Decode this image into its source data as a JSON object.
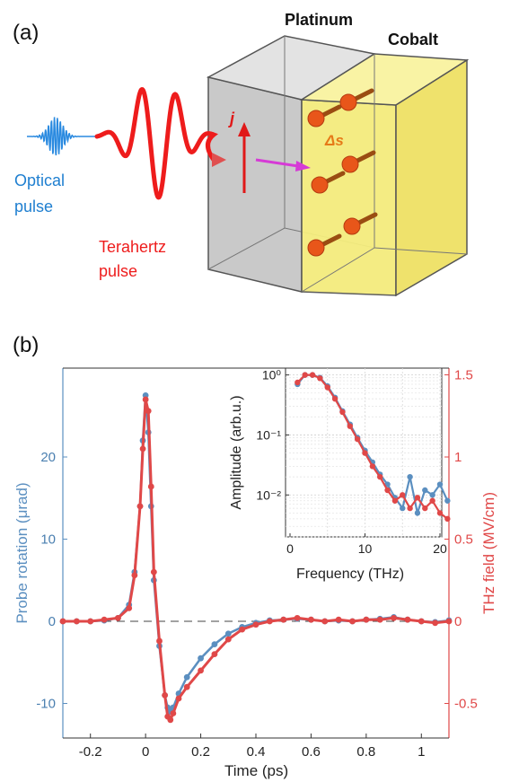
{
  "panel_a": {
    "label": "(a)",
    "platinum": "Platinum",
    "cobalt": "Cobalt",
    "optical_line1": "Optical",
    "optical_line2": "pulse",
    "thz_line1": "Terahertz",
    "thz_line2": "pulse",
    "current_symbol": "j",
    "spin_symbol": "Δs",
    "colors": {
      "optical": "#1f7fd0",
      "thz": "#ee1c1c",
      "cobalt": "#f6f07a",
      "platinum": "#c4c4c4",
      "arrow": "#d63ad6"
    }
  },
  "panel_b": {
    "label": "(b)",
    "colors": {
      "probe": "#5b8fc0",
      "thz": "#e04848"
    }
  },
  "chart_data": [
    {
      "type": "line",
      "xlabel": "Time (ps)",
      "ylabel_left": "Probe rotation (μrad)",
      "ylabel_right": "THz field (MV/cm)",
      "xlim": [
        -0.3,
        1.1
      ],
      "ylim_left": [
        -13,
        30
      ],
      "ylim_right": [
        -0.65,
        1.5
      ],
      "x_ticks": [
        "-0.2",
        "0",
        "0.2",
        "0.4",
        "0.6",
        "0.8",
        "1"
      ],
      "x_tick_values": [
        -0.2,
        0,
        0.2,
        0.4,
        0.6,
        0.8,
        1.0
      ],
      "left_ticks": [
        "-10",
        "0",
        "10",
        "20"
      ],
      "left_tick_values": [
        -10,
        0,
        10,
        20
      ],
      "right_ticks": [
        "-0.5",
        "0",
        "0.5",
        "1",
        "1.5"
      ],
      "right_tick_values": [
        -0.5,
        0,
        0.5,
        1.0,
        1.5
      ],
      "series": [
        {
          "axis": "left",
          "x": [
            -0.3,
            -0.25,
            -0.2,
            -0.15,
            -0.1,
            -0.06,
            -0.04,
            -0.02,
            -0.01,
            0,
            0.01,
            0.02,
            0.03,
            0.05,
            0.07,
            0.08,
            0.09,
            0.1,
            0.12,
            0.15,
            0.2,
            0.25,
            0.3,
            0.35,
            0.4,
            0.45,
            0.5,
            0.55,
            0.6,
            0.65,
            0.7,
            0.75,
            0.8,
            0.85,
            0.9,
            0.95,
            1.0,
            1.05,
            1.1
          ],
          "y": [
            0,
            0,
            0,
            0.1,
            0.4,
            2,
            6,
            14,
            22,
            27.5,
            23,
            14,
            5,
            -3,
            -9,
            -10.5,
            -11,
            -10.5,
            -8.8,
            -6.8,
            -4.5,
            -2.8,
            -1.5,
            -0.7,
            -0.2,
            0.1,
            0.2,
            0.3,
            0.2,
            0,
            0.1,
            0,
            0.2,
            0.3,
            0.5,
            0.2,
            0,
            -0.1,
            0.1
          ]
        },
        {
          "axis": "right",
          "x": [
            -0.3,
            -0.25,
            -0.2,
            -0.15,
            -0.1,
            -0.06,
            -0.04,
            -0.02,
            -0.01,
            0,
            0.01,
            0.02,
            0.03,
            0.05,
            0.07,
            0.08,
            0.09,
            0.1,
            0.12,
            0.15,
            0.2,
            0.25,
            0.3,
            0.35,
            0.4,
            0.45,
            0.5,
            0.55,
            0.6,
            0.65,
            0.7,
            0.75,
            0.8,
            0.85,
            0.9,
            0.95,
            1.0,
            1.05,
            1.1
          ],
          "y": [
            0,
            0,
            0,
            0.01,
            0.02,
            0.08,
            0.28,
            0.7,
            1.05,
            1.35,
            1.28,
            0.82,
            0.3,
            -0.12,
            -0.45,
            -0.58,
            -0.6,
            -0.56,
            -0.47,
            -0.4,
            -0.3,
            -0.2,
            -0.11,
            -0.05,
            -0.02,
            0,
            0.01,
            0.02,
            0.01,
            0,
            0.01,
            0,
            0.01,
            0.01,
            0.02,
            0.01,
            0,
            -0.01,
            0
          ]
        }
      ]
    },
    {
      "type": "line",
      "xlabel": "Frequency (THz)",
      "ylabel": "Amplitude (arb.u.)",
      "xlim": [
        0,
        23
      ],
      "ylim": [
        0.002,
        1.3
      ],
      "yscale": "log",
      "grid": true,
      "x_ticks": [
        "0",
        "10",
        "20"
      ],
      "x_tick_values": [
        0,
        10,
        20
      ],
      "y_ticks": [
        "10⁰",
        "10⁻¹",
        "10⁻²"
      ],
      "y_tick_values": [
        1,
        0.1,
        0.01
      ],
      "series": [
        {
          "x": [
            1,
            2,
            3,
            4,
            5,
            6,
            7,
            8,
            9,
            10,
            11,
            12,
            13,
            14,
            15,
            16,
            17,
            18,
            19,
            20,
            21
          ],
          "y": [
            0.7,
            1.0,
            1.0,
            0.9,
            0.65,
            0.42,
            0.25,
            0.15,
            0.09,
            0.055,
            0.035,
            0.022,
            0.015,
            0.009,
            0.006,
            0.02,
            0.005,
            0.012,
            0.01,
            0.015,
            0.008
          ]
        },
        {
          "x": [
            1,
            2,
            3,
            4,
            5,
            6,
            7,
            8,
            9,
            10,
            11,
            12,
            13,
            14,
            15,
            16,
            17,
            18,
            19,
            20,
            21
          ],
          "y": [
            0.75,
            1.0,
            1.0,
            0.88,
            0.62,
            0.4,
            0.24,
            0.14,
            0.085,
            0.05,
            0.03,
            0.02,
            0.012,
            0.008,
            0.01,
            0.006,
            0.009,
            0.006,
            0.008,
            0.005,
            0.004
          ]
        }
      ]
    }
  ]
}
